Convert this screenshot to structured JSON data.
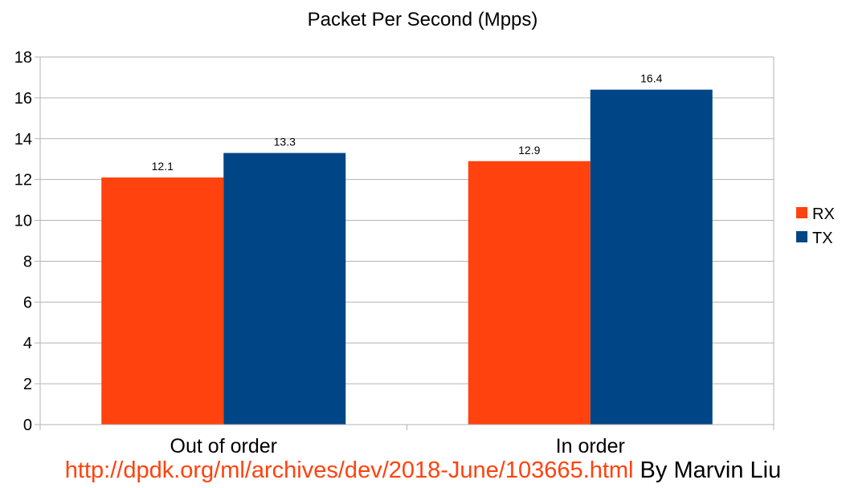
{
  "chart_data": {
    "type": "bar",
    "title": "Packet Per Second (Mpps)",
    "categories": [
      "Out of order",
      "In order"
    ],
    "series": [
      {
        "name": "RX",
        "values": [
          12.1,
          12.9
        ],
        "color": "#ff420e"
      },
      {
        "name": "TX",
        "values": [
          13.3,
          16.4
        ],
        "color": "#004586"
      }
    ],
    "ylim": [
      0,
      18
    ],
    "yticks": [
      "0",
      "2",
      "4",
      "6",
      "8",
      "10",
      "12",
      "14",
      "16",
      "18"
    ],
    "grid": true,
    "legend_position": "right"
  },
  "footer": {
    "link_text": "http://dpdk.org/ml/archives/dev/2018-June/103665.html",
    "link_color": "#ff420e",
    "credit_text": " By Marvin Liu"
  }
}
